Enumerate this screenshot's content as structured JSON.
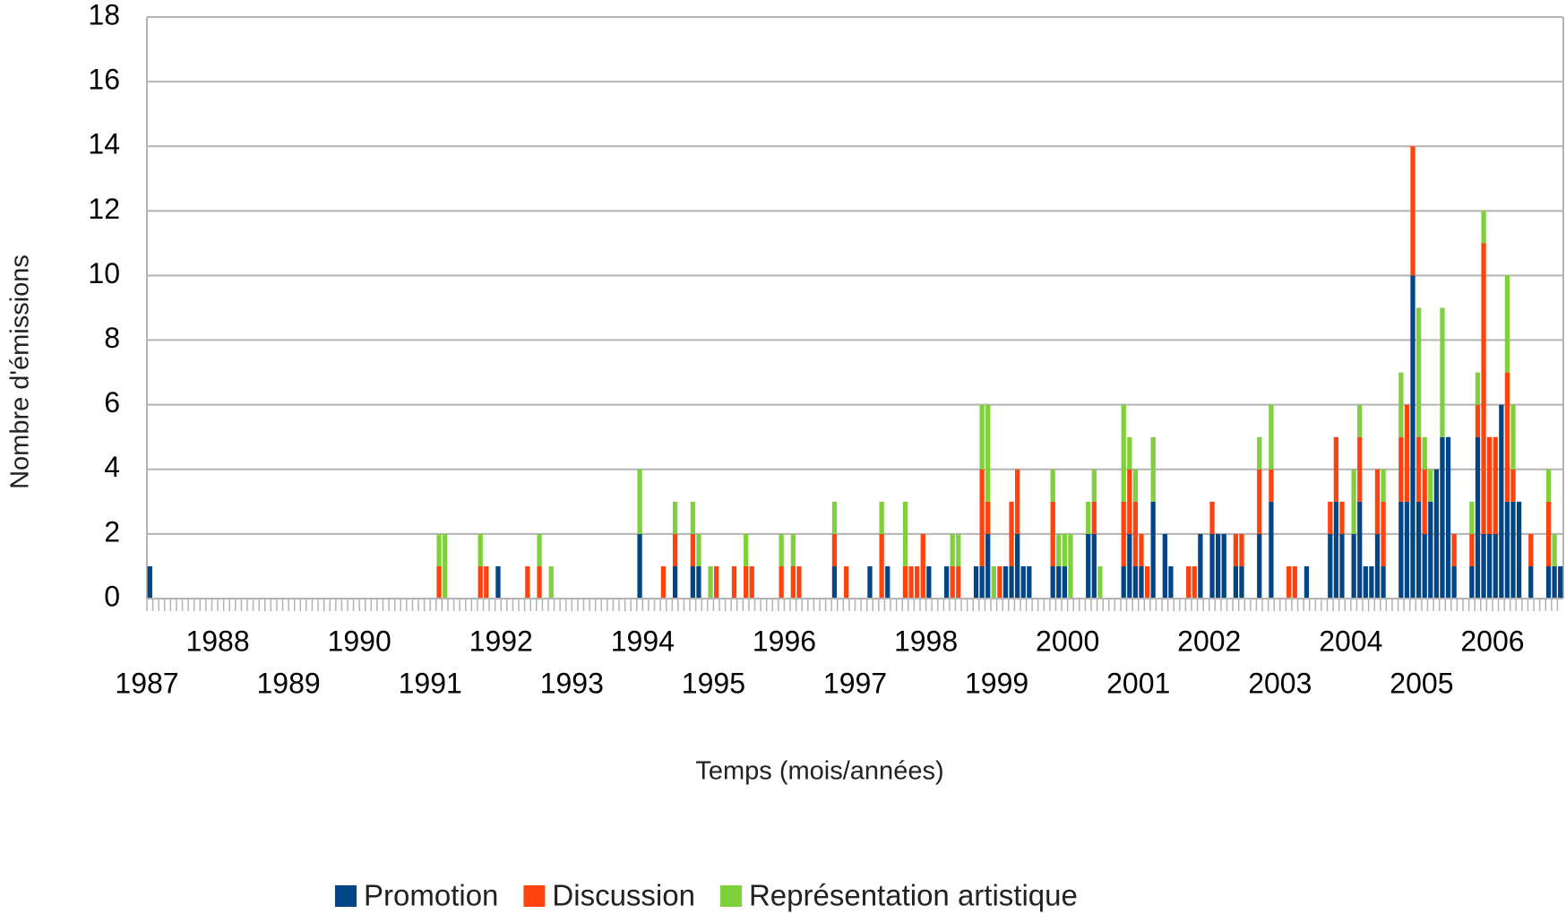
{
  "chart_data": {
    "type": "bar",
    "stacked": true,
    "xlabel": "Temps (mois/années)",
    "ylabel": "Nombre d'émissions",
    "categories": [
      "1987",
      null,
      null,
      null,
      null,
      null,
      null,
      null,
      null,
      null,
      null,
      null,
      "1988",
      null,
      null,
      null,
      null,
      null,
      null,
      null,
      null,
      null,
      null,
      null,
      "1989",
      null,
      null,
      null,
      null,
      null,
      null,
      null,
      null,
      null,
      null,
      null,
      "1990",
      null,
      null,
      null,
      null,
      null,
      null,
      null,
      null,
      null,
      null,
      null,
      "1991",
      null,
      null,
      null,
      null,
      null,
      null,
      null,
      null,
      null,
      null,
      null,
      "1992",
      null,
      null,
      null,
      null,
      null,
      null,
      null,
      null,
      null,
      null,
      null,
      "1993",
      null,
      null,
      null,
      null,
      null,
      null,
      null,
      null,
      null,
      null,
      null,
      "1994",
      null,
      null,
      null,
      null,
      null,
      null,
      null,
      null,
      null,
      null,
      null,
      "1995",
      null,
      null,
      null,
      null,
      null,
      null,
      null,
      null,
      null,
      null,
      null,
      "1996",
      null,
      null,
      null,
      null,
      null,
      null,
      null,
      null,
      null,
      null,
      null,
      "1997",
      null,
      null,
      null,
      null,
      null,
      null,
      null,
      null,
      null,
      null,
      null,
      "1998",
      null,
      null,
      null,
      null,
      null,
      null,
      null,
      null,
      null,
      null,
      null,
      "1999",
      null,
      null,
      null,
      null,
      null,
      null,
      null,
      null,
      null,
      null,
      null,
      "2000",
      null,
      null,
      null,
      null,
      null,
      null,
      null,
      null,
      null,
      null,
      null,
      "2001",
      null,
      null,
      null,
      null,
      null,
      null,
      null,
      null,
      null,
      null,
      null,
      "2002",
      null,
      null,
      null,
      null,
      null,
      null,
      null,
      null,
      null,
      null,
      null,
      "2003",
      null,
      null,
      null,
      null,
      null,
      null,
      null,
      null,
      null,
      null,
      null,
      "2004",
      null,
      null,
      null,
      null,
      null,
      null,
      null,
      null,
      null,
      null,
      null,
      "2005",
      null,
      null,
      null,
      null,
      null,
      null,
      null,
      null,
      null,
      null,
      null,
      "2006",
      null,
      null,
      null,
      null,
      null,
      null,
      null,
      null,
      null,
      null,
      null
    ],
    "series": [
      {
        "name": "Promotion",
        "color": "#004586",
        "values": [
          1,
          0,
          0,
          0,
          0,
          0,
          0,
          0,
          0,
          0,
          0,
          0,
          0,
          0,
          0,
          0,
          0,
          0,
          0,
          0,
          0,
          0,
          0,
          0,
          0,
          0,
          0,
          0,
          0,
          0,
          0,
          0,
          0,
          0,
          0,
          0,
          0,
          0,
          0,
          0,
          0,
          0,
          0,
          0,
          0,
          0,
          0,
          0,
          0,
          0,
          0,
          0,
          0,
          0,
          0,
          0,
          0,
          0,
          0,
          1,
          0,
          0,
          0,
          0,
          0,
          0,
          0,
          0,
          0,
          0,
          0,
          0,
          0,
          0,
          0,
          0,
          0,
          0,
          0,
          0,
          0,
          0,
          0,
          2,
          0,
          0,
          0,
          0,
          0,
          1,
          0,
          0,
          1,
          1,
          0,
          0,
          0,
          0,
          0,
          0,
          0,
          0,
          0,
          0,
          0,
          0,
          0,
          0,
          0,
          0,
          0,
          0,
          0,
          0,
          0,
          0,
          1,
          0,
          0,
          0,
          0,
          0,
          1,
          0,
          0,
          1,
          0,
          0,
          0,
          0,
          0,
          0,
          1,
          0,
          0,
          1,
          0,
          0,
          0,
          0,
          1,
          1,
          2,
          0,
          0,
          1,
          1,
          2,
          1,
          1,
          0,
          0,
          0,
          1,
          1,
          1,
          0,
          0,
          0,
          2,
          2,
          0,
          0,
          0,
          0,
          1,
          2,
          1,
          1,
          0,
          3,
          0,
          2,
          1,
          0,
          0,
          0,
          0,
          2,
          0,
          2,
          2,
          2,
          0,
          1,
          1,
          0,
          0,
          2,
          0,
          3,
          0,
          0,
          0,
          0,
          0,
          1,
          0,
          0,
          0,
          2,
          3,
          2,
          0,
          2,
          3,
          1,
          1,
          2,
          1,
          0,
          0,
          3,
          3,
          10,
          3,
          2,
          3,
          4,
          5,
          5,
          1,
          0,
          0,
          1,
          5,
          2,
          2,
          2,
          6,
          3,
          3,
          3,
          0,
          1,
          0,
          0,
          1,
          1,
          1
        ]
      },
      {
        "name": "Discussion",
        "color": "#ff420e",
        "values": [
          0,
          0,
          0,
          0,
          0,
          0,
          0,
          0,
          0,
          0,
          0,
          0,
          0,
          0,
          0,
          0,
          0,
          0,
          0,
          0,
          0,
          0,
          0,
          0,
          0,
          0,
          0,
          0,
          0,
          0,
          0,
          0,
          0,
          0,
          0,
          0,
          0,
          0,
          0,
          0,
          0,
          0,
          0,
          0,
          0,
          0,
          0,
          0,
          0,
          1,
          0,
          0,
          0,
          0,
          0,
          0,
          1,
          1,
          0,
          0,
          0,
          0,
          0,
          0,
          1,
          0,
          1,
          0,
          0,
          0,
          0,
          0,
          0,
          0,
          0,
          0,
          0,
          0,
          0,
          0,
          0,
          0,
          0,
          0,
          0,
          0,
          0,
          1,
          0,
          1,
          0,
          0,
          1,
          0,
          0,
          0,
          1,
          0,
          0,
          1,
          0,
          1,
          1,
          0,
          0,
          0,
          0,
          1,
          0,
          1,
          1,
          0,
          0,
          0,
          0,
          0,
          1,
          0,
          1,
          0,
          0,
          0,
          0,
          0,
          2,
          0,
          0,
          0,
          1,
          1,
          1,
          2,
          0,
          0,
          0,
          0,
          1,
          1,
          0,
          0,
          0,
          3,
          1,
          0,
          1,
          0,
          2,
          2,
          0,
          0,
          0,
          0,
          0,
          2,
          0,
          0,
          0,
          0,
          0,
          0,
          1,
          0,
          0,
          0,
          0,
          2,
          2,
          2,
          1,
          1,
          0,
          0,
          0,
          0,
          0,
          0,
          1,
          1,
          0,
          0,
          1,
          0,
          0,
          0,
          1,
          1,
          0,
          0,
          2,
          0,
          1,
          0,
          0,
          1,
          1,
          0,
          0,
          0,
          0,
          0,
          1,
          2,
          1,
          0,
          0,
          2,
          0,
          0,
          2,
          2,
          0,
          0,
          2,
          3,
          4,
          2,
          2,
          0,
          0,
          0,
          0,
          1,
          0,
          0,
          1,
          1,
          9,
          3,
          3,
          0,
          4,
          1,
          0,
          0,
          1,
          0,
          0,
          2,
          0,
          0
        ]
      },
      {
        "name": "Représentation artistique",
        "color": "#7fd13b",
        "values": [
          0,
          0,
          0,
          0,
          0,
          0,
          0,
          0,
          0,
          0,
          0,
          0,
          0,
          0,
          0,
          0,
          0,
          0,
          0,
          0,
          0,
          0,
          0,
          0,
          0,
          0,
          0,
          0,
          0,
          0,
          0,
          0,
          0,
          0,
          0,
          0,
          0,
          0,
          0,
          0,
          0,
          0,
          0,
          0,
          0,
          0,
          0,
          0,
          0,
          1,
          2,
          0,
          0,
          0,
          0,
          0,
          1,
          0,
          0,
          0,
          0,
          0,
          0,
          0,
          0,
          0,
          1,
          0,
          1,
          0,
          0,
          0,
          0,
          0,
          0,
          0,
          0,
          0,
          0,
          0,
          0,
          0,
          0,
          2,
          0,
          0,
          0,
          0,
          0,
          1,
          0,
          0,
          1,
          1,
          0,
          1,
          0,
          0,
          0,
          0,
          0,
          1,
          0,
          0,
          0,
          0,
          0,
          1,
          0,
          1,
          0,
          0,
          0,
          0,
          0,
          0,
          1,
          0,
          0,
          0,
          0,
          0,
          0,
          0,
          1,
          0,
          0,
          0,
          2,
          0,
          0,
          0,
          0,
          0,
          0,
          0,
          1,
          1,
          0,
          0,
          0,
          2,
          3,
          1,
          0,
          0,
          0,
          0,
          0,
          0,
          0,
          0,
          0,
          1,
          1,
          1,
          2,
          0,
          0,
          1,
          1,
          1,
          0,
          0,
          0,
          3,
          1,
          1,
          0,
          0,
          2,
          0,
          0,
          0,
          0,
          0,
          0,
          0,
          0,
          0,
          0,
          0,
          0,
          0,
          0,
          0,
          0,
          0,
          1,
          0,
          2,
          0,
          0,
          0,
          0,
          0,
          0,
          0,
          0,
          0,
          0,
          0,
          0,
          0,
          2,
          1,
          0,
          0,
          0,
          1,
          0,
          0,
          2,
          0,
          0,
          4,
          1,
          1,
          0,
          4,
          0,
          0,
          0,
          0,
          1,
          1,
          1,
          0,
          0,
          0,
          3,
          2,
          0,
          0,
          0,
          0,
          0,
          1,
          1,
          0
        ]
      }
    ],
    "ylim": [
      0,
      18
    ],
    "yticks": [
      0,
      2,
      4,
      6,
      8,
      10,
      12,
      14,
      16,
      18
    ],
    "grid": true,
    "legend": "bottom"
  }
}
